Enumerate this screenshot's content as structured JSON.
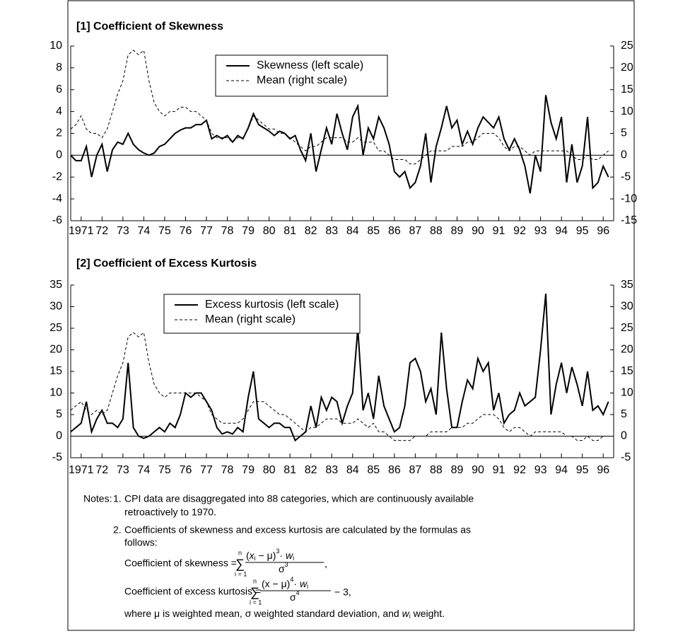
{
  "chart_data": [
    {
      "type": "line",
      "title": "[1] Coefficient of Skewness",
      "x": [
        1971,
        1971.25,
        1971.5,
        1971.75,
        1972,
        1972.25,
        1972.5,
        1972.75,
        1973,
        1973.25,
        1973.5,
        1973.75,
        1974,
        1974.25,
        1974.5,
        1974.75,
        1975,
        1975.25,
        1975.5,
        1975.75,
        1976,
        1976.25,
        1976.5,
        1976.75,
        1977,
        1977.25,
        1977.5,
        1977.75,
        1978,
        1978.25,
        1978.5,
        1978.75,
        1979,
        1979.25,
        1979.5,
        1979.75,
        1980,
        1980.25,
        1980.5,
        1980.75,
        1981,
        1981.25,
        1981.5,
        1981.75,
        1982,
        1982.25,
        1982.5,
        1982.75,
        1983,
        1983.25,
        1983.5,
        1983.75,
        1984,
        1984.25,
        1984.5,
        1984.75,
        1985,
        1985.25,
        1985.5,
        1985.75,
        1986,
        1986.25,
        1986.5,
        1986.75,
        1987,
        1987.25,
        1987.5,
        1987.75,
        1988,
        1988.25,
        1988.5,
        1988.75,
        1989,
        1989.25,
        1989.5,
        1989.75,
        1990,
        1990.25,
        1990.5,
        1990.75,
        1991,
        1991.25,
        1991.5,
        1991.75,
        1992,
        1992.25,
        1992.5,
        1992.75,
        1993,
        1993.25,
        1993.5,
        1993.75,
        1994,
        1994.25,
        1994.5,
        1994.75,
        1995,
        1995.25,
        1995.5,
        1995.75,
        1996,
        1996.25,
        1996.5,
        1996.75
      ],
      "series": [
        {
          "name": "Skewness (left scale)",
          "color": "#000000",
          "line_style": "solid",
          "axis": "y",
          "values": [
            0,
            -0.5,
            -0.5,
            0.8,
            -2.0,
            0,
            1.0,
            -1.5,
            0.5,
            1.2,
            1.0,
            2.0,
            1.0,
            0.5,
            0.2,
            0,
            0.2,
            0.8,
            1.0,
            1.5,
            2.0,
            2.3,
            2.5,
            2.5,
            2.8,
            2.8,
            3.2,
            1.5,
            1.8,
            1.5,
            1.8,
            1.2,
            1.8,
            1.5,
            2.5,
            3.8,
            2.8,
            2.5,
            2.2,
            1.8,
            2.2,
            2.0,
            1.5,
            1.8,
            0.5,
            -0.5,
            2.0,
            -1.5,
            0.5,
            2.5,
            1.0,
            3.8,
            2.0,
            0.5,
            3.5,
            4.5,
            0,
            2.5,
            1.5,
            3.5,
            2.5,
            1.0,
            -1.5,
            -2.0,
            -1.5,
            -3.0,
            -2.5,
            -1.0,
            2.0,
            -2.5,
            0.8,
            2.5,
            4.5,
            2.5,
            3.2,
            1.0,
            2.2,
            1.0,
            2.5,
            3.5,
            3.0,
            2.5,
            3.5,
            1.5,
            0.5,
            1.5,
            0.5,
            -1.0,
            -3.5,
            0,
            -1.5,
            5.5,
            3.0,
            1.5,
            3.5,
            -2.5,
            1.0,
            -2.5,
            -1.0,
            3.5,
            -3.0,
            -2.5,
            -1.0,
            -2.0
          ]
        },
        {
          "name": "Mean (right scale)",
          "color": "#000000",
          "line_style": "dashed",
          "axis": "y2",
          "values": [
            6,
            7,
            9,
            6,
            5,
            5,
            4,
            6,
            10,
            14,
            17,
            23,
            24,
            23,
            24,
            17,
            12,
            10,
            9,
            10,
            10,
            11,
            11,
            10,
            10,
            9,
            8,
            5,
            4,
            4,
            4,
            3,
            4,
            4,
            6,
            9,
            8,
            7,
            6,
            6,
            5,
            5,
            4,
            3,
            2,
            1,
            2,
            2,
            3,
            4,
            4,
            4,
            4,
            3,
            3,
            4,
            3,
            3,
            3,
            1,
            1,
            0,
            -1,
            -1,
            -1,
            -2,
            -2,
            -1,
            0,
            1,
            1,
            1,
            1,
            2,
            2,
            2,
            3,
            3,
            4,
            5,
            5,
            5,
            4,
            2,
            1,
            2,
            2,
            1,
            0,
            1,
            1,
            1,
            1,
            1,
            1,
            1,
            0,
            -1,
            -1,
            0,
            -1,
            -1,
            0,
            1
          ]
        }
      ],
      "xlim": [
        1971,
        1997
      ],
      "xticks": [
        {
          "value": 1971.5,
          "label": "1971"
        },
        {
          "value": 1972.5,
          "label": "72"
        },
        {
          "value": 1973.5,
          "label": "73"
        },
        {
          "value": 1974.5,
          "label": "74"
        },
        {
          "value": 1975.5,
          "label": "75"
        },
        {
          "value": 1976.5,
          "label": "76"
        },
        {
          "value": 1977.5,
          "label": "77"
        },
        {
          "value": 1978.5,
          "label": "78"
        },
        {
          "value": 1979.5,
          "label": "79"
        },
        {
          "value": 1980.5,
          "label": "80"
        },
        {
          "value": 1981.5,
          "label": "81"
        },
        {
          "value": 1982.5,
          "label": "82"
        },
        {
          "value": 1983.5,
          "label": "83"
        },
        {
          "value": 1984.5,
          "label": "84"
        },
        {
          "value": 1985.5,
          "label": "85"
        },
        {
          "value": 1986.5,
          "label": "86"
        },
        {
          "value": 1987.5,
          "label": "87"
        },
        {
          "value": 1988.5,
          "label": "88"
        },
        {
          "value": 1989.5,
          "label": "89"
        },
        {
          "value": 1990.5,
          "label": "90"
        },
        {
          "value": 1991.5,
          "label": "91"
        },
        {
          "value": 1992.5,
          "label": "92"
        },
        {
          "value": 1993.5,
          "label": "93"
        },
        {
          "value": 1994.5,
          "label": "94"
        },
        {
          "value": 1995.5,
          "label": "95"
        },
        {
          "value": 1996.5,
          "label": "96"
        }
      ],
      "ylim": [
        -6,
        10
      ],
      "yticks": [
        -6,
        -4,
        -2,
        0,
        2,
        4,
        6,
        8,
        10
      ],
      "y2lim": [
        -15,
        25
      ],
      "y2ticks": [
        -15,
        -10,
        -5,
        0,
        5,
        10,
        15,
        20,
        25
      ],
      "zero_line": true,
      "grid": false,
      "legend": "top"
    },
    {
      "type": "line",
      "title": "[2] Coefficient of Excess Kurtosis",
      "x": [
        1971,
        1971.25,
        1971.5,
        1971.75,
        1972,
        1972.25,
        1972.5,
        1972.75,
        1973,
        1973.25,
        1973.5,
        1973.75,
        1974,
        1974.25,
        1974.5,
        1974.75,
        1975,
        1975.25,
        1975.5,
        1975.75,
        1976,
        1976.25,
        1976.5,
        1976.75,
        1977,
        1977.25,
        1977.5,
        1977.75,
        1978,
        1978.25,
        1978.5,
        1978.75,
        1979,
        1979.25,
        1979.5,
        1979.75,
        1980,
        1980.25,
        1980.5,
        1980.75,
        1981,
        1981.25,
        1981.5,
        1981.75,
        1982,
        1982.25,
        1982.5,
        1982.75,
        1983,
        1983.25,
        1983.5,
        1983.75,
        1984,
        1984.25,
        1984.5,
        1984.75,
        1985,
        1985.25,
        1985.5,
        1985.75,
        1986,
        1986.25,
        1986.5,
        1986.75,
        1987,
        1987.25,
        1987.5,
        1987.75,
        1988,
        1988.25,
        1988.5,
        1988.75,
        1989,
        1989.25,
        1989.5,
        1989.75,
        1990,
        1990.25,
        1990.5,
        1990.75,
        1991,
        1991.25,
        1991.5,
        1991.75,
        1992,
        1992.25,
        1992.5,
        1992.75,
        1993,
        1993.25,
        1993.5,
        1993.75,
        1994,
        1994.25,
        1994.5,
        1994.75,
        1995,
        1995.25,
        1995.5,
        1995.75,
        1996,
        1996.25,
        1996.5,
        1996.75
      ],
      "series": [
        {
          "name": "Excess kurtosis (left scale)",
          "color": "#000000",
          "line_style": "solid",
          "axis": "y",
          "values": [
            1,
            2,
            3,
            8,
            1,
            4,
            6,
            3,
            3,
            2,
            4,
            17,
            2,
            0,
            -0.5,
            0,
            1,
            2,
            1,
            3,
            2,
            5,
            10,
            9,
            10,
            10,
            8,
            6,
            2,
            0.5,
            1,
            0.5,
            2,
            1,
            9,
            15,
            4,
            3,
            2,
            3,
            3,
            2,
            2,
            -1,
            0,
            1,
            7,
            2,
            9,
            6,
            9,
            8,
            3,
            7,
            10,
            25,
            6,
            10,
            4,
            14,
            7,
            4,
            1,
            2,
            7,
            17,
            18,
            15,
            8,
            11,
            5,
            24,
            11,
            2,
            2,
            8,
            13,
            11,
            18,
            15,
            17,
            6,
            10,
            3,
            5,
            6,
            10,
            7,
            8,
            9,
            20,
            33,
            5,
            12,
            17,
            10,
            16,
            12,
            7,
            15,
            6,
            7,
            5,
            8
          ]
        },
        {
          "name": "Mean (right scale)",
          "color": "#000000",
          "line_style": "dashed",
          "axis": "y2",
          "values": [
            6,
            7,
            8,
            6,
            5,
            6,
            5,
            6,
            10,
            14,
            17,
            23,
            24,
            23,
            24,
            17,
            12,
            10,
            9,
            10,
            10,
            10,
            10,
            10,
            10,
            9,
            8,
            5,
            4,
            3,
            3,
            3,
            3,
            4,
            6,
            8,
            8,
            8,
            7,
            6,
            5,
            5,
            4,
            3,
            2,
            1,
            2,
            2,
            3,
            4,
            4,
            4,
            3,
            3,
            3,
            4,
            3,
            2,
            3,
            1,
            1,
            0,
            -1,
            -1,
            -1,
            -1,
            0,
            0,
            0,
            1,
            1,
            1,
            1,
            2,
            2,
            2,
            3,
            3,
            4,
            5,
            5,
            5,
            4,
            2,
            1,
            2,
            2,
            1,
            0,
            1,
            1,
            1,
            1,
            1,
            1,
            0,
            0,
            -1,
            -1,
            0,
            -1,
            -1,
            0,
            0
          ]
        }
      ],
      "xlim": [
        1971,
        1997
      ],
      "xticks": [
        {
          "value": 1971.5,
          "label": "1971"
        },
        {
          "value": 1972.5,
          "label": "72"
        },
        {
          "value": 1973.5,
          "label": "73"
        },
        {
          "value": 1974.5,
          "label": "74"
        },
        {
          "value": 1975.5,
          "label": "75"
        },
        {
          "value": 1976.5,
          "label": "76"
        },
        {
          "value": 1977.5,
          "label": "77"
        },
        {
          "value": 1978.5,
          "label": "78"
        },
        {
          "value": 1979.5,
          "label": "79"
        },
        {
          "value": 1980.5,
          "label": "80"
        },
        {
          "value": 1981.5,
          "label": "81"
        },
        {
          "value": 1982.5,
          "label": "82"
        },
        {
          "value": 1983.5,
          "label": "83"
        },
        {
          "value": 1984.5,
          "label": "84"
        },
        {
          "value": 1985.5,
          "label": "85"
        },
        {
          "value": 1986.5,
          "label": "86"
        },
        {
          "value": 1987.5,
          "label": "87"
        },
        {
          "value": 1988.5,
          "label": "88"
        },
        {
          "value": 1989.5,
          "label": "89"
        },
        {
          "value": 1990.5,
          "label": "90"
        },
        {
          "value": 1991.5,
          "label": "91"
        },
        {
          "value": 1992.5,
          "label": "92"
        },
        {
          "value": 1993.5,
          "label": "93"
        },
        {
          "value": 1994.5,
          "label": "94"
        },
        {
          "value": 1995.5,
          "label": "95"
        },
        {
          "value": 1996.5,
          "label": "96"
        }
      ],
      "ylim": [
        -5,
        35
      ],
      "yticks": [
        -5,
        0,
        5,
        10,
        15,
        20,
        25,
        30,
        35
      ],
      "y2lim": [
        -5,
        35
      ],
      "y2ticks": [
        -5,
        0,
        5,
        10,
        15,
        20,
        25,
        30,
        35
      ],
      "zero_line": true,
      "grid": false,
      "legend": "top"
    }
  ],
  "notes": {
    "label": "Notes:",
    "item1": {
      "number": "1.",
      "lines": [
        "CPI data are disaggregated into 88 categories, which are continuously available",
        "retroactively to 1970."
      ]
    },
    "item2": {
      "number": "2.",
      "lines": [
        "Coefficients of skewness and excess kurtosis are calculated by the formulas as",
        "follows:"
      ]
    },
    "formula_skew": {
      "lhs": "Coefficient of skewness =",
      "sum": "∑",
      "upper": "n",
      "lower": "i = 1",
      "num": [
        "(",
        "x",
        "i",
        " − μ)",
        "3",
        "· ",
        "w",
        "i"
      ],
      "den": [
        "σ",
        "3"
      ],
      "tail": ","
    },
    "formula_kurt": {
      "lhs": "Coefficient of excess kurtosis =",
      "sum": "∑",
      "upper": "n",
      "lower": "i = 1",
      "num": [
        "(x − μ)",
        "4",
        "· ",
        "w",
        "i"
      ],
      "den": [
        "σ",
        "4"
      ],
      "tail": "− 3,"
    },
    "where": {
      "text": "where μ is weighted mean, σ weighted standard deviation, and ",
      "w": "w",
      "sub": "i",
      "end": " weight."
    }
  }
}
